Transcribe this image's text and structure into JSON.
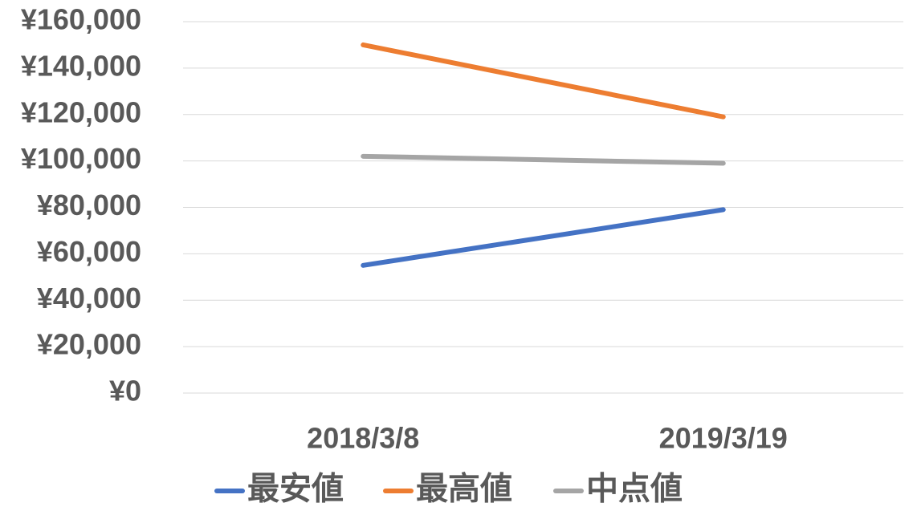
{
  "chart_data": {
    "type": "line",
    "categories": [
      "2018/3/8",
      "2019/3/19"
    ],
    "series": [
      {
        "name": "最安値",
        "color": "#4472c4",
        "values": [
          55000,
          79000
        ]
      },
      {
        "name": "最高値",
        "color": "#ed7d31",
        "values": [
          150000,
          119000
        ]
      },
      {
        "name": "中点値",
        "color": "#a5a5a5",
        "values": [
          102000,
          99000
        ]
      }
    ],
    "ylim": [
      0,
      160000
    ],
    "yticks": [
      {
        "value": 0,
        "label": "¥0"
      },
      {
        "value": 20000,
        "label": "¥20,000"
      },
      {
        "value": 40000,
        "label": "¥40,000"
      },
      {
        "value": 60000,
        "label": "¥60,000"
      },
      {
        "value": 80000,
        "label": "¥80,000"
      },
      {
        "value": 100000,
        "label": "¥100,000"
      },
      {
        "value": 120000,
        "label": "¥120,000"
      },
      {
        "value": 140000,
        "label": "¥140,000"
      },
      {
        "value": 160000,
        "label": "¥160,000"
      }
    ],
    "grid": true,
    "legend": "bottom"
  }
}
